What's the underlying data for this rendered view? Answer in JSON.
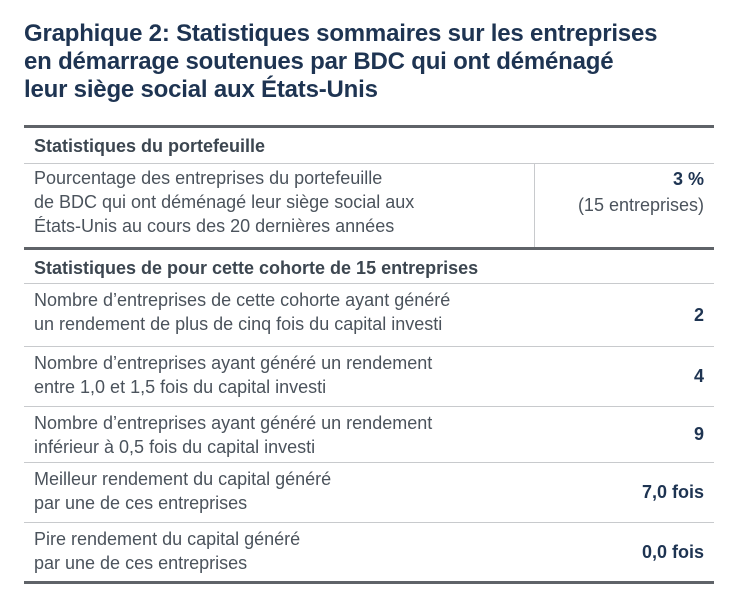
{
  "title": {
    "line1": "Graphique 2: Statistiques sommaires sur les entreprises",
    "line2": "en démarrage soutenues par BDC qui ont déménagé",
    "line3": "leur siège social aux États-Unis"
  },
  "portfolio_section": {
    "heading": "Statistiques du portefeuille",
    "rows": [
      {
        "label_lines": [
          "Pourcentage des entreprises du portefeuille",
          "de BDC qui ont déménagé leur siège social aux",
          "États-Unis au cours des 20 dernières années"
        ],
        "value": "3 %",
        "value_sub": "(15 entreprises)"
      }
    ]
  },
  "cohort_section": {
    "heading": "Statistiques de pour cette cohorte de 15 entreprises",
    "rows": [
      {
        "label_lines": [
          "Nombre d’entreprises de cette cohorte ayant généré",
          "un rendement de plus de cinq fois du capital investi"
        ],
        "value": "2"
      },
      {
        "label_lines": [
          "Nombre d’entreprises ayant généré un rendement",
          "entre 1,0 et 1,5 fois du capital investi"
        ],
        "value": "4"
      },
      {
        "label_lines": [
          "Nombre d’entreprises ayant généré un rendement",
          "inférieur à 0,5 fois du capital investi"
        ],
        "value": "9"
      },
      {
        "label_lines": [
          "Meilleur rendement du capital généré",
          "par une de ces entreprises"
        ],
        "value": "7,0 fois"
      },
      {
        "label_lines": [
          "Pire rendement du capital généré",
          "par une de ces entreprises"
        ],
        "value": "0,0 fois"
      }
    ]
  }
}
